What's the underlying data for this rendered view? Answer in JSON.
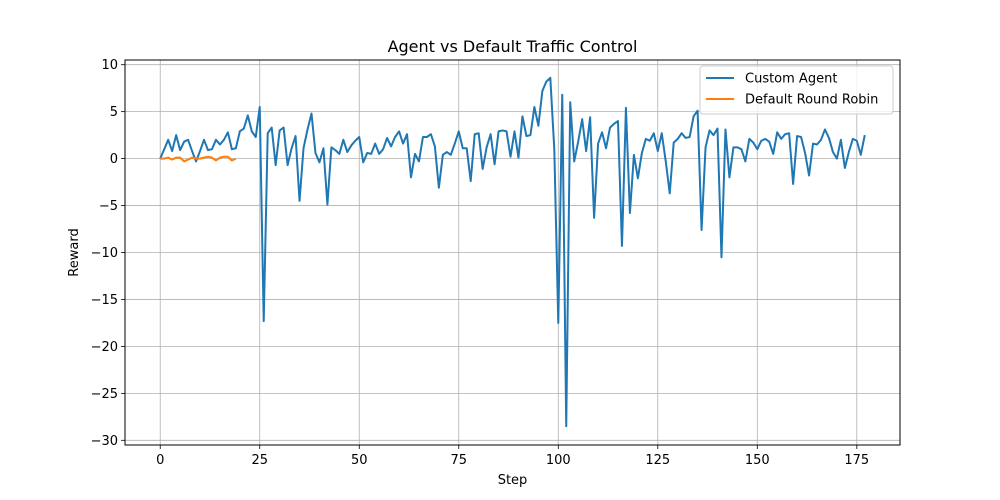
{
  "chart_data": {
    "type": "line",
    "title": "Agent vs Default Traffic Control",
    "xlabel": "Step",
    "ylabel": "Reward",
    "xlim": [
      -8.85,
      185.85
    ],
    "ylim": [
      -30.5,
      10.5
    ],
    "xticks": [
      0,
      25,
      50,
      75,
      100,
      125,
      150,
      175
    ],
    "yticks": [
      -30,
      -25,
      -20,
      -15,
      -10,
      -5,
      0,
      5,
      10
    ],
    "xtick_labels": [
      "0",
      "25",
      "50",
      "75",
      "100",
      "125",
      "150",
      "175"
    ],
    "ytick_labels": [
      "−30",
      "−25",
      "−20",
      "−15",
      "−10",
      "−5",
      "0",
      "5",
      "10"
    ],
    "grid": true,
    "legend_position": "top-right",
    "series": [
      {
        "name": "Custom Agent",
        "color": "#1f77b4",
        "values": [
          0.0,
          1.0,
          2.0,
          0.8,
          2.5,
          0.9,
          1.8,
          2.0,
          0.8,
          -0.3,
          0.8,
          2.0,
          0.9,
          1.0,
          2.0,
          1.5,
          2.0,
          2.8,
          1.0,
          1.1,
          2.9,
          3.2,
          4.6,
          2.9,
          2.3,
          5.5,
          -17.3,
          2.7,
          3.3,
          -0.7,
          3.0,
          3.3,
          -0.7,
          1.1,
          2.4,
          -4.5,
          1.1,
          3.1,
          4.8,
          0.6,
          -0.4,
          1.1,
          -4.9,
          1.2,
          0.9,
          0.5,
          2.0,
          0.7,
          1.4,
          1.9,
          2.3,
          -0.4,
          0.6,
          0.5,
          1.6,
          0.5,
          1.0,
          2.2,
          1.3,
          2.3,
          2.9,
          1.6,
          2.6,
          -2.0,
          0.5,
          -0.3,
          2.3,
          2.3,
          2.6,
          1.3,
          -3.1,
          0.4,
          0.7,
          0.4,
          1.6,
          2.9,
          1.1,
          1.1,
          -2.4,
          2.6,
          2.7,
          -1.1,
          1.2,
          2.6,
          -0.6,
          2.9,
          3.0,
          2.9,
          0.2,
          2.9,
          0.1,
          4.5,
          2.4,
          2.5,
          5.5,
          3.5,
          7.2,
          8.2,
          8.6,
          1.0,
          -17.5,
          6.8,
          -28.5,
          6.0,
          -0.3,
          1.8,
          4.2,
          0.8,
          4.4,
          -6.3,
          1.6,
          2.8,
          1.1,
          3.3,
          3.7,
          4.0,
          -9.3,
          5.4,
          -5.8,
          0.4,
          -2.1,
          0.6,
          2.1,
          1.9,
          2.7,
          0.8,
          2.7,
          -0.3,
          -3.7,
          1.7,
          2.1,
          2.7,
          2.2,
          2.3,
          4.5,
          5.1,
          -7.6,
          1.2,
          3.0,
          2.5,
          3.2,
          -10.5,
          3.1,
          -2.0,
          1.2,
          1.2,
          1.0,
          -0.3,
          2.1,
          1.7,
          1.0,
          1.9,
          2.1,
          1.8,
          0.5,
          2.8,
          2.1,
          2.6,
          2.7,
          -2.7,
          2.4,
          2.3,
          0.6,
          -1.8,
          1.6,
          1.5,
          2.0,
          3.1,
          2.2,
          0.7,
          0.0,
          2.0,
          -1.0,
          0.7,
          2.1,
          1.9,
          0.4,
          2.5
        ]
      },
      {
        "name": "Default Round Robin",
        "color": "#ff7f0e",
        "values": [
          0.0,
          0.0,
          0.1,
          -0.1,
          0.1,
          0.1,
          -0.3,
          -0.1,
          0.1,
          0.0,
          0.0,
          0.1,
          0.2,
          0.1,
          -0.2,
          0.1,
          0.2,
          0.2,
          -0.2,
          0.0
        ]
      }
    ]
  }
}
